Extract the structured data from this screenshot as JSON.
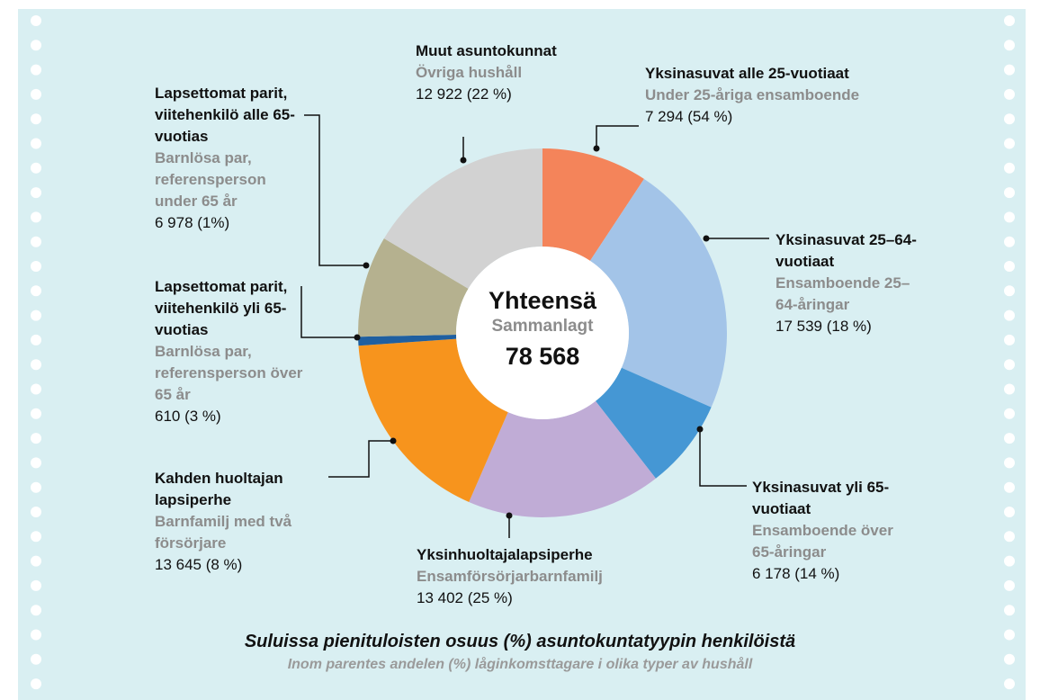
{
  "chart_data": {
    "type": "pie",
    "donut": true,
    "categories": [
      "Yksinasuvat alle 25-vuotiaat",
      "Yksinasuvat 25–64-vuotiaat",
      "Yksinasuvat yli 65-vuotiaat",
      "Yksinhuoltajalapsiperhe",
      "Kahden huoltajan lapsiperhe",
      "Lapsettomat parit, viitehenkilö yli 65-vuotias",
      "Lapsettomat parit, viitehenkilö alle 65-vuotias",
      "Muut asuntokunnat"
    ],
    "categories_sv": [
      "Under 25-åriga ensamboende",
      "Ensamboende 25–64-åringar",
      "Ensamboende över 65-åringar",
      "Ensamförsörjarbarnfamilj",
      "Barnfamilj med två försörjare",
      "Barnlösa par, referensperson över 65 år",
      "Barnlösa par, referensperson under 65 år",
      "Övriga hushåll"
    ],
    "values": [
      7294,
      17539,
      6178,
      13402,
      13645,
      610,
      6978,
      12922
    ],
    "value_labels": [
      "7 294 (54 %)",
      "17 539 (18 %)",
      "6 178 (14 %)",
      "13 402 (25 %)",
      "13 645 (8 %)",
      "610 (3 %)",
      "6 978 (1%)",
      "12 922 (22 %)"
    ],
    "colors": [
      "#f4845a",
      "#a3c4e8",
      "#4597d4",
      "#c0acd6",
      "#f7941d",
      "#1f5fa0",
      "#b5b18f",
      "#d2d2d2"
    ],
    "center_title": "Yhteensä",
    "center_subtitle": "Sammanlagt",
    "total": 78568,
    "total_label": "78 568",
    "footnote": "Suluissa pienituloisten osuus (%) asuntokuntatyypin henkilöistä",
    "footnote_sv": "Inom parentes andelen (%) låginkomsttagare i olika typer av hushåll"
  }
}
